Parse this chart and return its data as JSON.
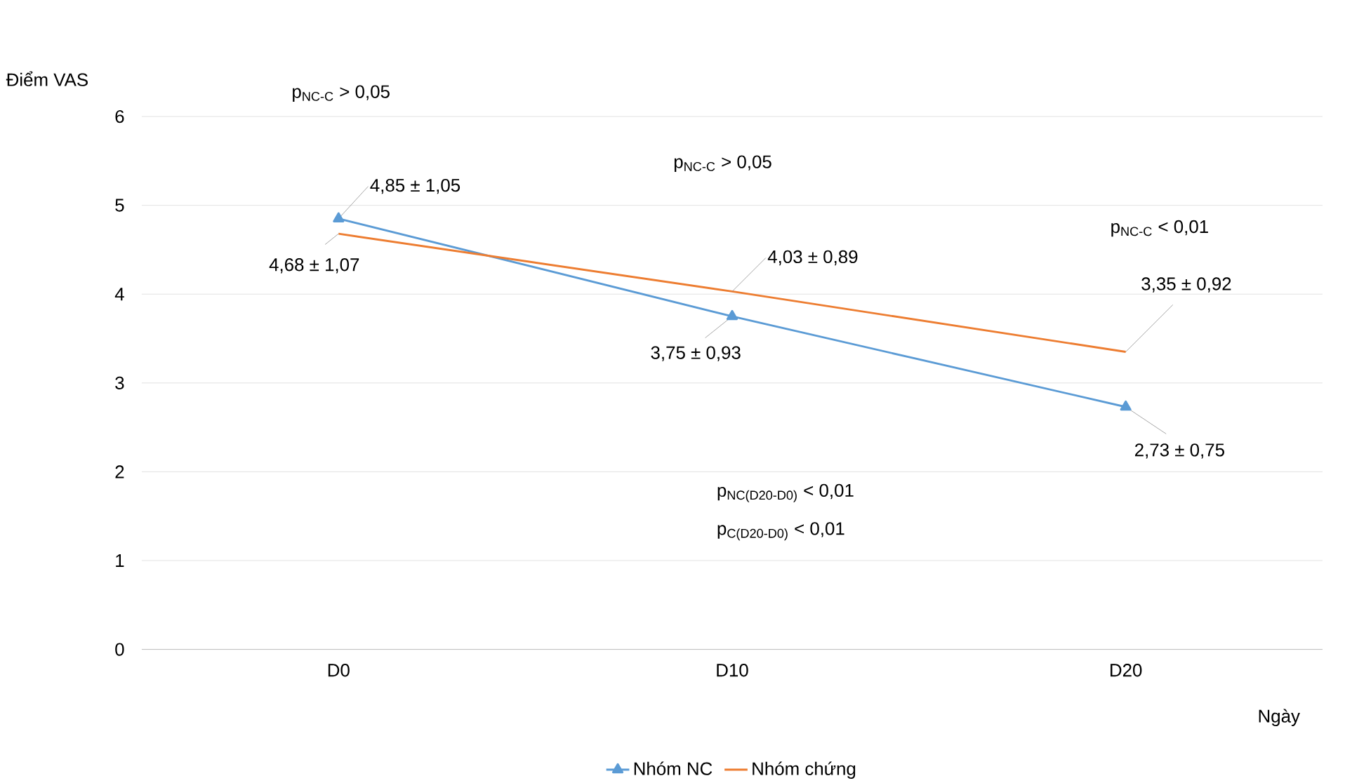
{
  "chart_data": {
    "type": "line",
    "xlabel": "Ngày",
    "ylabel": "Điểm VAS",
    "categories": [
      "D0",
      "D10",
      "D20"
    ],
    "ylim": [
      0,
      6
    ],
    "yticks": [
      0,
      1,
      2,
      3,
      4,
      5,
      6
    ],
    "grid": "y",
    "legend": "bottom",
    "series": [
      {
        "name": "Nhóm NC",
        "color": "#5b9bd5",
        "marker": "triangle",
        "values": [
          4.85,
          3.75,
          2.73
        ],
        "value_labels": [
          "4,85 ± 1,05",
          "3,75 ± 0,93",
          "2,73 ± 0,75"
        ]
      },
      {
        "name": "Nhóm chứng",
        "color": "#ed7d31",
        "values": [
          4.68,
          4.03,
          3.35
        ],
        "value_labels": [
          "4,68 ± 1,07",
          "4,03 ± 0,89",
          "3,35 ± 0,92"
        ]
      }
    ],
    "annotations": [
      "p$_{NC-C}$ > 0,05",
      "p$_{NC-C}$ > 0,05",
      "p$_{NC-C}$ < 0,01",
      "p$_{NC(D20-D0)}$ < 0,01",
      "p$_{C(D20-D0)}$ < 0,01"
    ]
  }
}
